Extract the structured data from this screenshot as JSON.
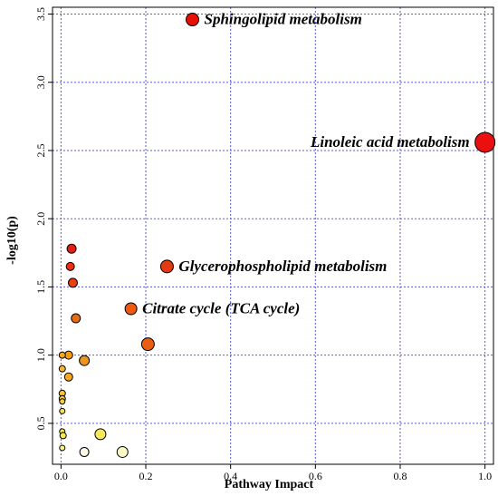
{
  "chart_data": {
    "type": "scatter",
    "title": "",
    "xlabel": "Pathway Impact",
    "ylabel": "-log10(p)",
    "xlim": [
      -0.02,
      1.02
    ],
    "ylim": [
      0.2,
      3.55
    ],
    "x_ticks": [
      "0.0",
      "0.2",
      "0.4",
      "0.6",
      "0.8",
      "1.0"
    ],
    "x_tick_values": [
      0,
      0.2,
      0.4,
      0.6,
      0.8,
      1.0
    ],
    "y_ticks": [
      "0.5",
      "1.0",
      "1.5",
      "2.0",
      "2.5",
      "3.0",
      "3.5"
    ],
    "y_tick_values": [
      0.5,
      1.0,
      1.5,
      2.0,
      2.5,
      3.0,
      3.5
    ],
    "grid": true,
    "grid_color": "#5b5bd6",
    "color_scale": [
      "#ffffe0",
      "#ff0000"
    ],
    "points": [
      {
        "x": 0.31,
        "y": 3.46,
        "size": 7,
        "color": "#e81006",
        "label": "Sphingolipid metabolism"
      },
      {
        "x": 1.0,
        "y": 2.56,
        "size": 11,
        "color": "#ec0f0f",
        "label": "Linoleic acid metabolism"
      },
      {
        "x": 0.25,
        "y": 1.65,
        "size": 7,
        "color": "#e43a12",
        "label": "Glycerophospholipid metabolism"
      },
      {
        "x": 0.165,
        "y": 1.34,
        "size": 6.5,
        "color": "#ef5a10",
        "label": "Citrate cycle (TCA cycle)"
      },
      {
        "x": 0.205,
        "y": 1.08,
        "size": 7,
        "color": "#ea5e14",
        "label": ""
      },
      {
        "x": 0.025,
        "y": 1.78,
        "size": 5,
        "color": "#e21d12",
        "label": ""
      },
      {
        "x": 0.022,
        "y": 1.65,
        "size": 4.5,
        "color": "#e53113",
        "label": ""
      },
      {
        "x": 0.028,
        "y": 1.53,
        "size": 5,
        "color": "#ea3d10",
        "label": ""
      },
      {
        "x": 0.035,
        "y": 1.27,
        "size": 5,
        "color": "#e86b10",
        "label": ""
      },
      {
        "x": 0.055,
        "y": 0.96,
        "size": 5.5,
        "color": "#f0951c",
        "label": ""
      },
      {
        "x": 0.018,
        "y": 1.0,
        "size": 4.5,
        "color": "#f39c12",
        "label": ""
      },
      {
        "x": 0.003,
        "y": 1.0,
        "size": 3.5,
        "color": "#f5a623",
        "label": ""
      },
      {
        "x": 0.018,
        "y": 0.84,
        "size": 4.5,
        "color": "#f5a623",
        "label": ""
      },
      {
        "x": 0.003,
        "y": 0.9,
        "size": 3.5,
        "color": "#f7b733",
        "label": ""
      },
      {
        "x": 0.003,
        "y": 0.72,
        "size": 3.5,
        "color": "#f7c43c",
        "label": ""
      },
      {
        "x": 0.003,
        "y": 0.68,
        "size": 3.5,
        "color": "#f7c43c",
        "label": ""
      },
      {
        "x": 0.003,
        "y": 0.66,
        "size": 3,
        "color": "#f4d03f",
        "label": ""
      },
      {
        "x": 0.003,
        "y": 0.59,
        "size": 3,
        "color": "#f4e04b",
        "label": ""
      },
      {
        "x": 0.003,
        "y": 0.44,
        "size": 3,
        "color": "#f4ea4f",
        "label": ""
      },
      {
        "x": 0.005,
        "y": 0.41,
        "size": 3.5,
        "color": "#f2ec58",
        "label": ""
      },
      {
        "x": 0.093,
        "y": 0.42,
        "size": 6,
        "color": "#f6e85a",
        "label": ""
      },
      {
        "x": 0.003,
        "y": 0.32,
        "size": 3,
        "color": "#f6f486",
        "label": ""
      },
      {
        "x": 0.055,
        "y": 0.29,
        "size": 5,
        "color": "#fefce8",
        "label": ""
      },
      {
        "x": 0.145,
        "y": 0.29,
        "size": 6,
        "color": "#fbf8c8",
        "label": ""
      }
    ]
  }
}
